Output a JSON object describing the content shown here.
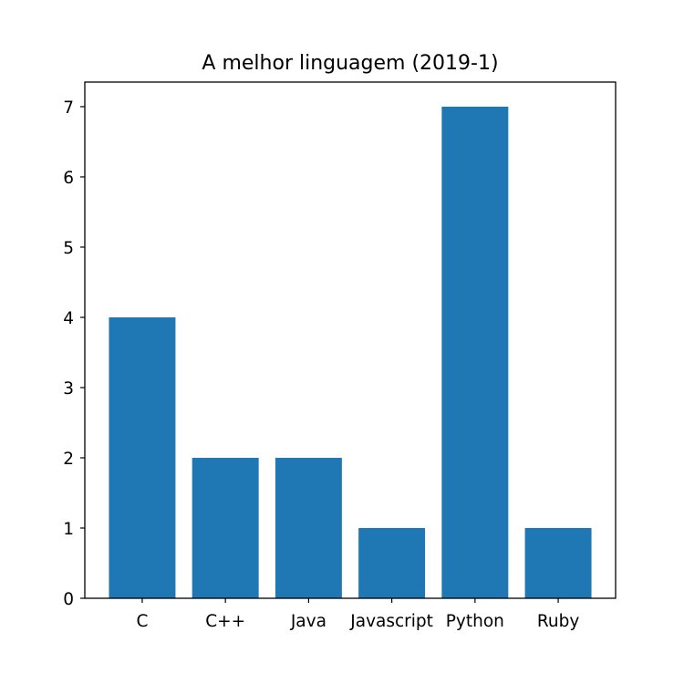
{
  "chart_data": {
    "type": "bar",
    "title": "A melhor linguagem (2019-1)",
    "xlabel": "",
    "ylabel": "",
    "categories": [
      "C",
      "C++",
      "Java",
      "Javascript",
      "Python",
      "Ruby"
    ],
    "values": [
      4,
      2,
      2,
      1,
      7,
      1
    ],
    "ylim": [
      0,
      7.35
    ],
    "yticks": [
      0,
      1,
      2,
      3,
      4,
      5,
      6,
      7
    ],
    "grid": false,
    "legend": "none",
    "bar_color": "#1f77b4"
  }
}
